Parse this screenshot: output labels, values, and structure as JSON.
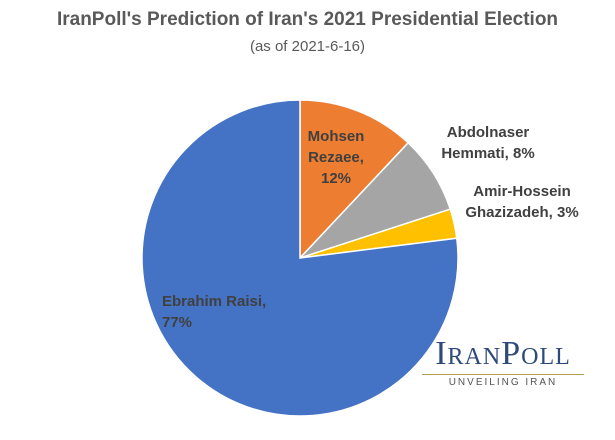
{
  "chart_data": {
    "type": "pie",
    "title": "IranPoll's Prediction of Iran's 2021 Presidential Election",
    "subtitle": "(as of 2021-6-16)",
    "values": [
      12,
      8,
      3,
      77
    ],
    "value_labels": [
      "Mohsen Rezaee, 12%",
      "Abdolnaser Hemmati, 8%",
      "Amir-Hossein Ghazizadeh, 3%",
      "Ebrahim Raisi, 77%"
    ],
    "colors": [
      "#ed7d31",
      "#a5a5a5",
      "#ffc000",
      "#4472c4"
    ]
  },
  "logo": {
    "name": "IranPoll",
    "tagline": "UNVEILING IRAN"
  }
}
